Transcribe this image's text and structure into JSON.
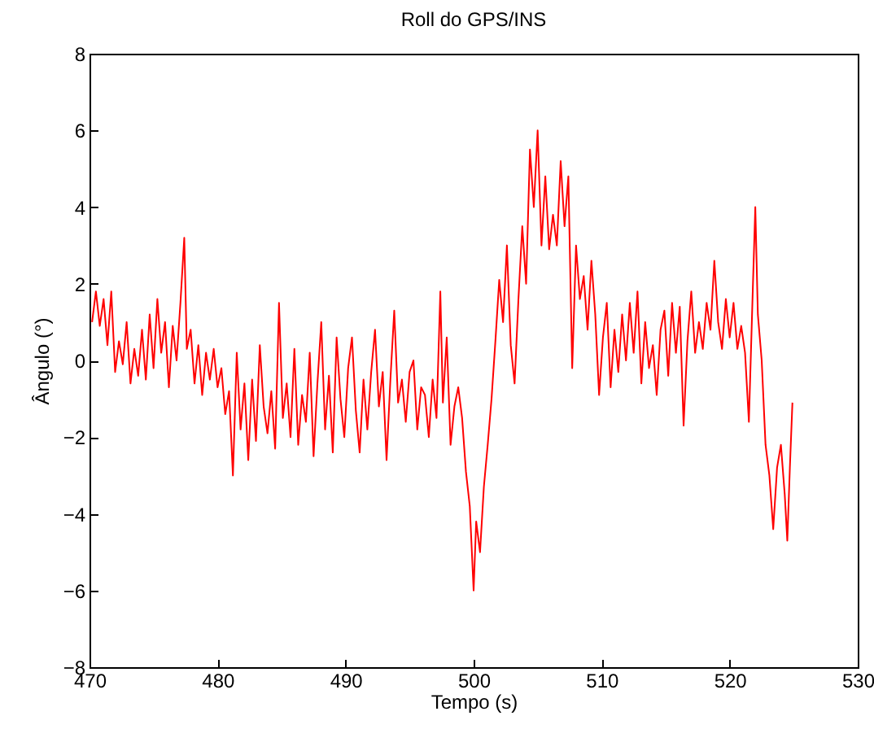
{
  "chart_data": {
    "type": "line",
    "title": "Roll do GPS/INS",
    "xlabel": "Tempo (s)",
    "ylabel": "Ângulo (°)",
    "xlim": [
      470,
      530
    ],
    "xticks": [
      470,
      480,
      490,
      500,
      510,
      520,
      530
    ],
    "ylim": [
      -8,
      8
    ],
    "yticks": [
      -8,
      -6,
      -4,
      -2,
      0,
      2,
      4,
      6,
      8
    ],
    "grid": false,
    "x": [
      470.2,
      470.5,
      470.8,
      471.1,
      471.4,
      471.7,
      472.0,
      472.3,
      472.6,
      472.9,
      473.2,
      473.5,
      473.8,
      474.1,
      474.4,
      474.7,
      475.0,
      475.3,
      475.6,
      475.9,
      476.2,
      476.5,
      476.8,
      477.1,
      477.4,
      477.6,
      477.9,
      478.2,
      478.5,
      478.8,
      479.1,
      479.4,
      479.7,
      480.0,
      480.3,
      480.6,
      480.9,
      481.2,
      481.5,
      481.8,
      482.1,
      482.4,
      482.7,
      483.0,
      483.3,
      483.6,
      483.9,
      484.2,
      484.5,
      484.8,
      485.1,
      485.4,
      485.7,
      486.0,
      486.3,
      486.6,
      486.9,
      487.2,
      487.5,
      487.8,
      488.1,
      488.4,
      488.7,
      489.0,
      489.3,
      489.6,
      489.9,
      490.2,
      490.5,
      490.8,
      491.1,
      491.4,
      491.7,
      492.0,
      492.3,
      492.6,
      492.9,
      493.2,
      493.5,
      493.8,
      494.1,
      494.4,
      494.7,
      495.0,
      495.3,
      495.6,
      495.9,
      496.2,
      496.5,
      496.8,
      497.1,
      497.4,
      497.6,
      497.9,
      498.2,
      498.5,
      498.8,
      499.1,
      499.4,
      499.7,
      500.0,
      500.2,
      500.5,
      500.8,
      501.1,
      501.4,
      501.7,
      502.0,
      502.3,
      502.6,
      502.9,
      503.2,
      503.5,
      503.8,
      504.1,
      504.4,
      504.7,
      505.0,
      505.3,
      505.6,
      505.9,
      506.2,
      506.5,
      506.8,
      507.1,
      507.4,
      507.7,
      508.0,
      508.3,
      508.6,
      508.9,
      509.2,
      509.5,
      509.8,
      510.1,
      510.4,
      510.7,
      511.0,
      511.3,
      511.6,
      511.9,
      512.2,
      512.5,
      512.8,
      513.1,
      513.4,
      513.7,
      514.0,
      514.3,
      514.6,
      514.9,
      515.2,
      515.5,
      515.8,
      516.1,
      516.4,
      516.7,
      517.0,
      517.3,
      517.6,
      517.9,
      518.2,
      518.5,
      518.8,
      519.1,
      519.4,
      519.7,
      520.0,
      520.3,
      520.6,
      520.9,
      521.2,
      521.5,
      521.8,
      522.0,
      522.2,
      522.5,
      522.8,
      523.1,
      523.4,
      523.7,
      524.0,
      524.3,
      524.5,
      524.7,
      524.9
    ],
    "series": [
      {
        "color": "#ff0000",
        "values": [
          1.0,
          1.8,
          0.9,
          1.6,
          0.4,
          1.8,
          -0.3,
          0.5,
          -0.1,
          1.0,
          -0.6,
          0.3,
          -0.4,
          0.8,
          -0.5,
          1.2,
          -0.2,
          1.6,
          0.2,
          1.0,
          -0.7,
          0.9,
          0.0,
          1.5,
          3.2,
          0.3,
          0.8,
          -0.6,
          0.4,
          -0.9,
          0.2,
          -0.5,
          0.3,
          -0.7,
          -0.2,
          -1.4,
          -0.8,
          -3.0,
          0.2,
          -1.8,
          -0.6,
          -2.6,
          -0.5,
          -2.1,
          0.4,
          -1.2,
          -1.9,
          -0.8,
          -2.3,
          1.5,
          -1.5,
          -0.6,
          -2.0,
          0.3,
          -2.2,
          -0.9,
          -1.6,
          0.2,
          -2.5,
          -0.6,
          1.0,
          -1.8,
          -0.4,
          -2.4,
          0.6,
          -1.0,
          -2.0,
          -0.2,
          0.6,
          -1.3,
          -2.4,
          -0.5,
          -1.8,
          -0.3,
          0.8,
          -1.2,
          -0.3,
          -2.6,
          -0.5,
          1.3,
          -1.1,
          -0.5,
          -1.6,
          -0.3,
          0.0,
          -1.8,
          -0.7,
          -0.9,
          -2.0,
          -0.5,
          -1.5,
          1.8,
          -1.1,
          0.6,
          -2.2,
          -1.2,
          -0.7,
          -1.5,
          -2.9,
          -3.8,
          -6.0,
          -4.2,
          -5.0,
          -3.3,
          -2.2,
          -1.0,
          0.5,
          2.1,
          1.0,
          3.0,
          0.4,
          -0.6,
          1.6,
          3.5,
          2.0,
          5.5,
          4.0,
          6.0,
          3.0,
          4.8,
          2.9,
          3.8,
          3.0,
          5.2,
          3.5,
          4.8,
          -0.2,
          3.0,
          1.6,
          2.2,
          0.8,
          2.6,
          1.2,
          -0.9,
          0.6,
          1.5,
          -0.7,
          0.8,
          -0.3,
          1.2,
          0.0,
          1.5,
          0.2,
          1.8,
          -0.6,
          1.0,
          -0.2,
          0.4,
          -0.9,
          0.8,
          1.3,
          -0.4,
          1.5,
          0.2,
          1.4,
          -1.7,
          0.5,
          1.8,
          0.2,
          1.0,
          0.3,
          1.5,
          0.8,
          2.6,
          1.0,
          0.3,
          1.6,
          0.6,
          1.5,
          0.3,
          0.9,
          0.2,
          -1.6,
          1.8,
          4.0,
          1.2,
          0.0,
          -2.2,
          -3.0,
          -4.4,
          -2.8,
          -2.2,
          -3.5,
          -4.7,
          -2.8,
          -1.1
        ]
      }
    ]
  }
}
